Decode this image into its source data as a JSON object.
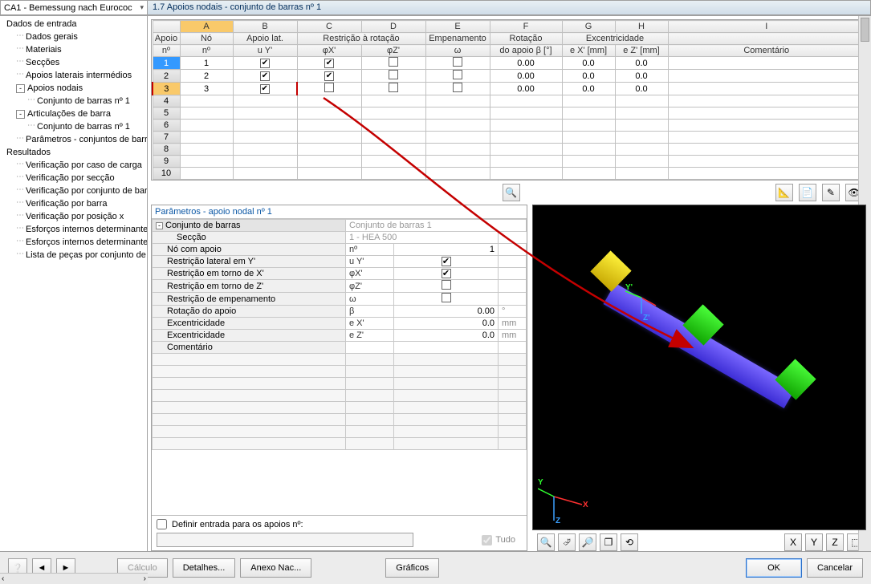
{
  "dropdown": {
    "text": "CA1 - Bemessung nach Eurococ"
  },
  "header": "1.7 Apoios nodais - conjunto de barras nº 1",
  "tree": [
    {
      "label": "Dados de entrada",
      "level": 0,
      "exp": null
    },
    {
      "label": "Dados gerais",
      "level": 1,
      "exp": null,
      "dots": true
    },
    {
      "label": "Materiais",
      "level": 1,
      "exp": null,
      "dots": true
    },
    {
      "label": "Secções",
      "level": 1,
      "exp": null,
      "dots": true
    },
    {
      "label": "Apoios laterais intermédios",
      "level": 1,
      "exp": null,
      "dots": true
    },
    {
      "label": "Apoios nodais",
      "level": 1,
      "exp": "-",
      "dots": false
    },
    {
      "label": "Conjunto de barras nº 1",
      "level": 2,
      "exp": null,
      "dots": true
    },
    {
      "label": "Articulações de barra",
      "level": 1,
      "exp": "-",
      "dots": false
    },
    {
      "label": "Conjunto de barras nº 1",
      "level": 2,
      "exp": null,
      "dots": true
    },
    {
      "label": "Parâmetros - conjuntos de barras",
      "level": 1,
      "exp": null,
      "dots": true
    },
    {
      "label": "Resultados",
      "level": 0,
      "exp": null
    },
    {
      "label": "Verificação por caso de carga",
      "level": 1,
      "exp": null,
      "dots": true
    },
    {
      "label": "Verificação por secção",
      "level": 1,
      "exp": null,
      "dots": true
    },
    {
      "label": "Verificação por conjunto de barras",
      "level": 1,
      "exp": null,
      "dots": true
    },
    {
      "label": "Verificação por barra",
      "level": 1,
      "exp": null,
      "dots": true
    },
    {
      "label": "Verificação por posição x",
      "level": 1,
      "exp": null,
      "dots": true
    },
    {
      "label": "Esforços internos determinantes",
      "level": 1,
      "exp": null,
      "dots": true
    },
    {
      "label": "Esforços internos determinantes",
      "level": 1,
      "exp": null,
      "dots": true
    },
    {
      "label": "Lista de peças por conjunto de",
      "level": 1,
      "exp": null,
      "dots": true
    }
  ],
  "grid": {
    "colLetters": [
      "A",
      "B",
      "C",
      "D",
      "E",
      "F",
      "G",
      "H",
      "I"
    ],
    "header1": [
      "Apoio",
      "Nó",
      "Apoio lat.",
      "Restrição à rotação",
      "",
      "Empenamento",
      "Rotação",
      "Excentricidade",
      "",
      "Comentário"
    ],
    "header2": [
      "nº",
      "nº",
      "u Y'",
      "φX'",
      "φZ'",
      "ω",
      "do apoio β [°]",
      "e X' [mm]",
      "e Z' [mm]",
      ""
    ],
    "rows": [
      {
        "n": "1",
        "no": "1",
        "uy": true,
        "fx": true,
        "fz": false,
        "w": false,
        "beta": "0.00",
        "ex": "0.0",
        "ez": "0.0",
        "c": ""
      },
      {
        "n": "2",
        "no": "2",
        "uy": true,
        "fx": true,
        "fz": false,
        "w": false,
        "beta": "0.00",
        "ex": "0.0",
        "ez": "0.0",
        "c": ""
      },
      {
        "n": "3",
        "no": "3",
        "uy": true,
        "fx": false,
        "fz": false,
        "w": false,
        "beta": "0.00",
        "ex": "0.0",
        "ez": "0.0",
        "c": ""
      },
      {
        "n": "4"
      },
      {
        "n": "5"
      },
      {
        "n": "6"
      },
      {
        "n": "7"
      },
      {
        "n": "8"
      },
      {
        "n": "9"
      },
      {
        "n": "10"
      }
    ]
  },
  "params": {
    "title": "Parâmetros - apoio nodal nº 1",
    "rows": [
      {
        "type": "group",
        "label": "Conjunto de barras",
        "val": "Conjunto de barras 1",
        "gray": true
      },
      {
        "type": "row",
        "label": "Secção",
        "val": "1 - HEA 500",
        "gray": true,
        "indent": 1
      },
      {
        "type": "row",
        "label": "Nó com apoio",
        "sym": "nº",
        "val": "1"
      },
      {
        "type": "row",
        "label": "Restrição lateral em Y'",
        "sym": "u Y'",
        "check": true
      },
      {
        "type": "row",
        "label": "Restrição em torno de X'",
        "sym": "φX'",
        "check": true
      },
      {
        "type": "row",
        "label": "Restrição em torno de Z'",
        "sym": "φZ'",
        "check": false
      },
      {
        "type": "row",
        "label": "Restrição de empenamento",
        "sym": "ω",
        "check": false
      },
      {
        "type": "row",
        "label": "Rotação do apoio",
        "sym": "β",
        "val": "0.00",
        "unit": "°"
      },
      {
        "type": "row",
        "label": "Excentricidade",
        "sym": "e X'",
        "val": "0.0",
        "unit": "mm"
      },
      {
        "type": "row",
        "label": "Excentricidade",
        "sym": "e Z'",
        "val": "0.0",
        "unit": "mm"
      },
      {
        "type": "row",
        "label": "Comentário",
        "val": ""
      }
    ],
    "definir": "Definir entrada para os apoios nº:",
    "tudo": "Tudo"
  },
  "footer": {
    "calculo": "Cálculo",
    "detalhes": "Detalhes...",
    "anexo": "Anexo Nac...",
    "graficos": "Gráficos",
    "ok": "OK",
    "cancel": "Cancelar"
  },
  "colors": {
    "highlight": "#c40000",
    "beam": "#5a4df0",
    "supportGreen": "#2fe01a",
    "supportYellow": "#f5e328"
  }
}
